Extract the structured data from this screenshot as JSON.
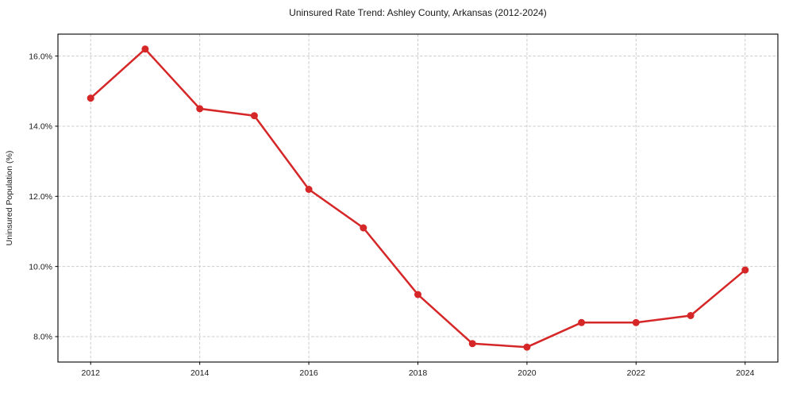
{
  "chart_data": {
    "type": "line",
    "title": "Uninsured Rate Trend: Ashley County, Arkansas (2012-2024)",
    "xlabel": "",
    "ylabel": "Uninsured Population (%)",
    "x": [
      2012,
      2013,
      2014,
      2015,
      2016,
      2017,
      2018,
      2019,
      2020,
      2021,
      2022,
      2023,
      2024
    ],
    "values": [
      14.8,
      16.2,
      14.5,
      14.3,
      12.2,
      11.1,
      9.2,
      7.8,
      7.7,
      8.4,
      8.4,
      8.6,
      9.9
    ],
    "xticks": [
      2012,
      2014,
      2016,
      2018,
      2020,
      2022,
      2024
    ],
    "xtick_labels": [
      "2012",
      "2014",
      "2016",
      "2018",
      "2020",
      "2022",
      "2024"
    ],
    "yticks": [
      8,
      10,
      12,
      14,
      16
    ],
    "ytick_labels": [
      "8.0%",
      "10.0%",
      "12.0%",
      "14.0%",
      "16.0%"
    ],
    "xlim": [
      2011.4,
      2024.6
    ],
    "ylim": [
      7.275,
      16.625
    ],
    "grid": true,
    "grid_style": "dashed",
    "legend_position": "none",
    "line_color": "#d62728",
    "marker": "circle",
    "marker_color": "#d62728",
    "grid_color": "#cccccc",
    "spine_color": "#000000",
    "background_color": "#ffffff"
  }
}
